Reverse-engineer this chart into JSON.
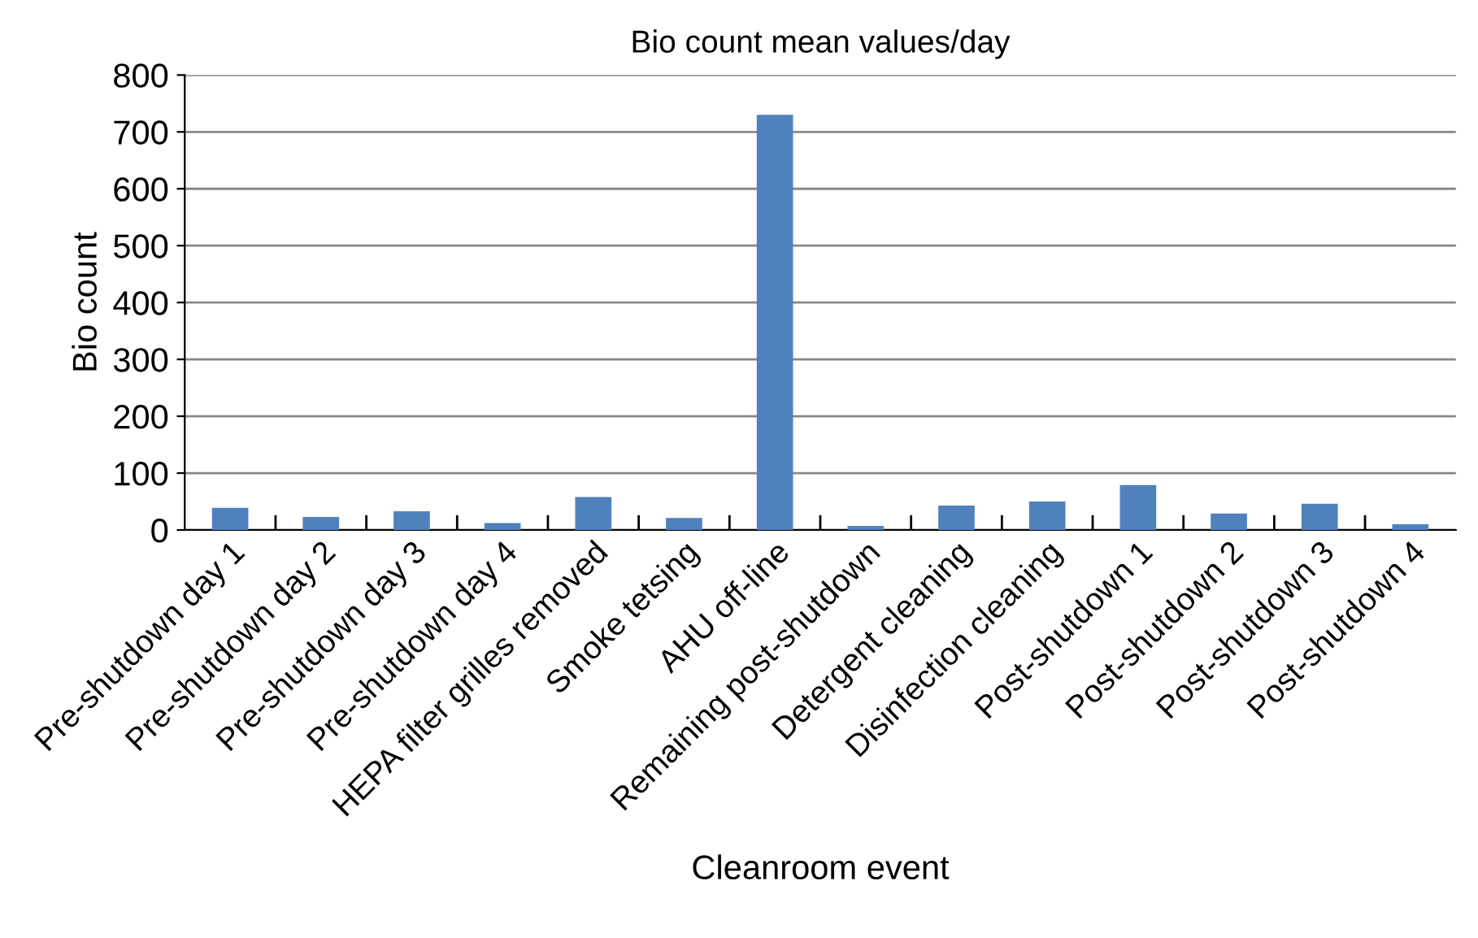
{
  "chart_data": {
    "type": "bar",
    "title": "Bio count mean values/day",
    "xlabel": "Cleanroom event",
    "ylabel": "Bio count",
    "categories": [
      "Pre-shutdown day 1",
      "Pre-shutdown day 2",
      "Pre-shutdown day 3",
      "Pre-shutdown day 4",
      "HEPA filter grilles removed",
      "Smoke tetsing",
      "AHU off-line",
      "Remaining post-shutdown",
      "Detergent cleaning",
      "Disinfection cleaning",
      "Post-shutdown 1",
      "Post-shutdown 2",
      "Post-shutdown 3",
      "Post-shutdown 4"
    ],
    "values": [
      39,
      23,
      33,
      12,
      58,
      21,
      730,
      7,
      43,
      50,
      79,
      29,
      46,
      10
    ],
    "color": "#4f81bd",
    "ylim": [
      0,
      800
    ],
    "yticks": [
      0,
      100,
      200,
      300,
      400,
      500,
      600,
      700,
      800
    ],
    "grid": "y"
  }
}
